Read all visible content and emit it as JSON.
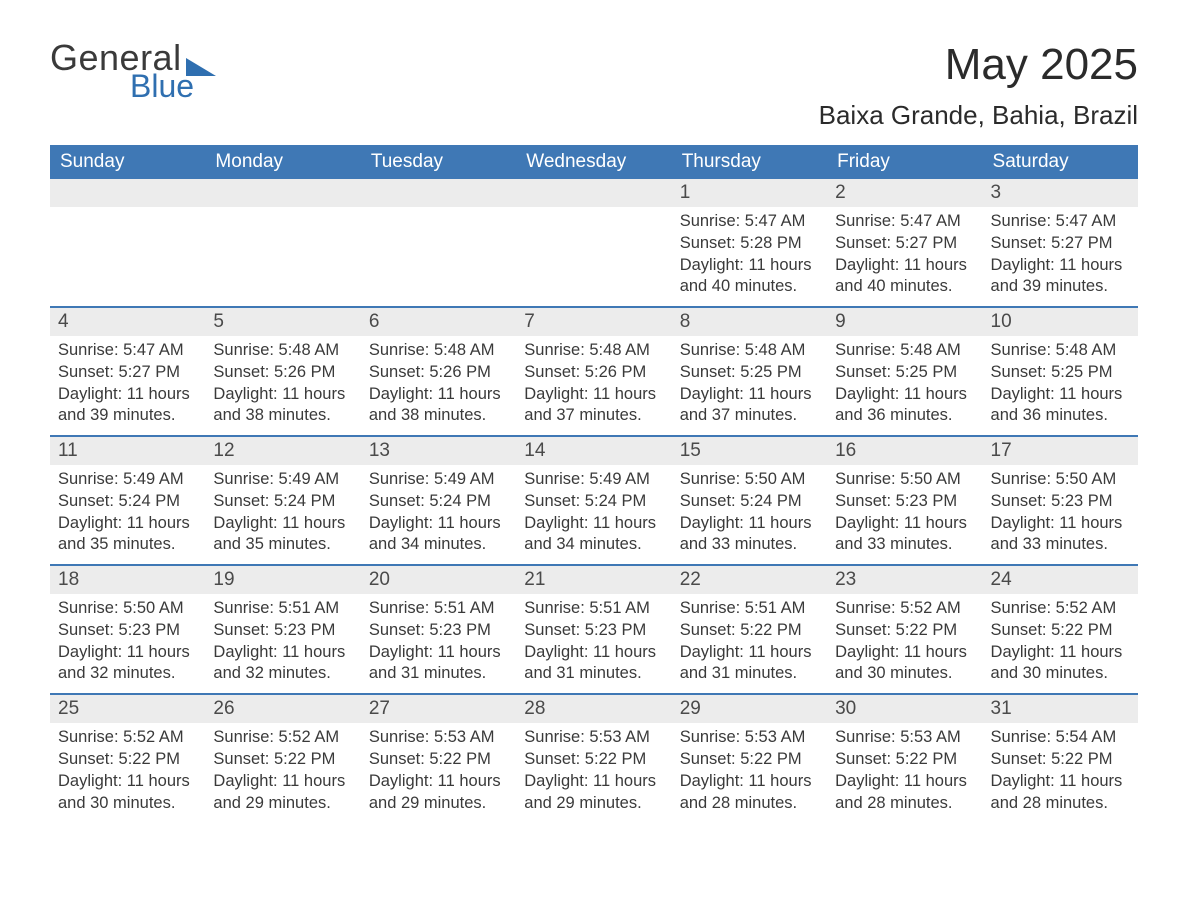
{
  "logo": {
    "textA": "General",
    "textB": "Blue",
    "triangle_color": "#2f6fb0",
    "textA_color": "#3a3a3a",
    "textB_color": "#2f6fb0"
  },
  "header": {
    "month_title": "May 2025",
    "location": "Baixa Grande, Bahia, Brazil"
  },
  "colors": {
    "header_bg": "#3f78b5",
    "header_text": "#ffffff",
    "daynum_bg": "#ececec",
    "week_border": "#3f78b5",
    "body_text": "#3a3a3a",
    "page_bg": "#ffffff"
  },
  "typography": {
    "month_title_fontsize": 44,
    "location_fontsize": 26,
    "dayhead_fontsize": 19,
    "daynum_fontsize": 19,
    "body_fontsize": 16.5
  },
  "calendar": {
    "type": "table",
    "day_headers": [
      "Sunday",
      "Monday",
      "Tuesday",
      "Wednesday",
      "Thursday",
      "Friday",
      "Saturday"
    ],
    "weeks": [
      [
        {
          "blank": true
        },
        {
          "blank": true
        },
        {
          "blank": true
        },
        {
          "blank": true
        },
        {
          "day": "1",
          "sunrise": "Sunrise: 5:47 AM",
          "sunset": "Sunset: 5:28 PM",
          "dl1": "Daylight: 11 hours",
          "dl2": "and 40 minutes."
        },
        {
          "day": "2",
          "sunrise": "Sunrise: 5:47 AM",
          "sunset": "Sunset: 5:27 PM",
          "dl1": "Daylight: 11 hours",
          "dl2": "and 40 minutes."
        },
        {
          "day": "3",
          "sunrise": "Sunrise: 5:47 AM",
          "sunset": "Sunset: 5:27 PM",
          "dl1": "Daylight: 11 hours",
          "dl2": "and 39 minutes."
        }
      ],
      [
        {
          "day": "4",
          "sunrise": "Sunrise: 5:47 AM",
          "sunset": "Sunset: 5:27 PM",
          "dl1": "Daylight: 11 hours",
          "dl2": "and 39 minutes."
        },
        {
          "day": "5",
          "sunrise": "Sunrise: 5:48 AM",
          "sunset": "Sunset: 5:26 PM",
          "dl1": "Daylight: 11 hours",
          "dl2": "and 38 minutes."
        },
        {
          "day": "6",
          "sunrise": "Sunrise: 5:48 AM",
          "sunset": "Sunset: 5:26 PM",
          "dl1": "Daylight: 11 hours",
          "dl2": "and 38 minutes."
        },
        {
          "day": "7",
          "sunrise": "Sunrise: 5:48 AM",
          "sunset": "Sunset: 5:26 PM",
          "dl1": "Daylight: 11 hours",
          "dl2": "and 37 minutes."
        },
        {
          "day": "8",
          "sunrise": "Sunrise: 5:48 AM",
          "sunset": "Sunset: 5:25 PM",
          "dl1": "Daylight: 11 hours",
          "dl2": "and 37 minutes."
        },
        {
          "day": "9",
          "sunrise": "Sunrise: 5:48 AM",
          "sunset": "Sunset: 5:25 PM",
          "dl1": "Daylight: 11 hours",
          "dl2": "and 36 minutes."
        },
        {
          "day": "10",
          "sunrise": "Sunrise: 5:48 AM",
          "sunset": "Sunset: 5:25 PM",
          "dl1": "Daylight: 11 hours",
          "dl2": "and 36 minutes."
        }
      ],
      [
        {
          "day": "11",
          "sunrise": "Sunrise: 5:49 AM",
          "sunset": "Sunset: 5:24 PM",
          "dl1": "Daylight: 11 hours",
          "dl2": "and 35 minutes."
        },
        {
          "day": "12",
          "sunrise": "Sunrise: 5:49 AM",
          "sunset": "Sunset: 5:24 PM",
          "dl1": "Daylight: 11 hours",
          "dl2": "and 35 minutes."
        },
        {
          "day": "13",
          "sunrise": "Sunrise: 5:49 AM",
          "sunset": "Sunset: 5:24 PM",
          "dl1": "Daylight: 11 hours",
          "dl2": "and 34 minutes."
        },
        {
          "day": "14",
          "sunrise": "Sunrise: 5:49 AM",
          "sunset": "Sunset: 5:24 PM",
          "dl1": "Daylight: 11 hours",
          "dl2": "and 34 minutes."
        },
        {
          "day": "15",
          "sunrise": "Sunrise: 5:50 AM",
          "sunset": "Sunset: 5:24 PM",
          "dl1": "Daylight: 11 hours",
          "dl2": "and 33 minutes."
        },
        {
          "day": "16",
          "sunrise": "Sunrise: 5:50 AM",
          "sunset": "Sunset: 5:23 PM",
          "dl1": "Daylight: 11 hours",
          "dl2": "and 33 minutes."
        },
        {
          "day": "17",
          "sunrise": "Sunrise: 5:50 AM",
          "sunset": "Sunset: 5:23 PM",
          "dl1": "Daylight: 11 hours",
          "dl2": "and 33 minutes."
        }
      ],
      [
        {
          "day": "18",
          "sunrise": "Sunrise: 5:50 AM",
          "sunset": "Sunset: 5:23 PM",
          "dl1": "Daylight: 11 hours",
          "dl2": "and 32 minutes."
        },
        {
          "day": "19",
          "sunrise": "Sunrise: 5:51 AM",
          "sunset": "Sunset: 5:23 PM",
          "dl1": "Daylight: 11 hours",
          "dl2": "and 32 minutes."
        },
        {
          "day": "20",
          "sunrise": "Sunrise: 5:51 AM",
          "sunset": "Sunset: 5:23 PM",
          "dl1": "Daylight: 11 hours",
          "dl2": "and 31 minutes."
        },
        {
          "day": "21",
          "sunrise": "Sunrise: 5:51 AM",
          "sunset": "Sunset: 5:23 PM",
          "dl1": "Daylight: 11 hours",
          "dl2": "and 31 minutes."
        },
        {
          "day": "22",
          "sunrise": "Sunrise: 5:51 AM",
          "sunset": "Sunset: 5:22 PM",
          "dl1": "Daylight: 11 hours",
          "dl2": "and 31 minutes."
        },
        {
          "day": "23",
          "sunrise": "Sunrise: 5:52 AM",
          "sunset": "Sunset: 5:22 PM",
          "dl1": "Daylight: 11 hours",
          "dl2": "and 30 minutes."
        },
        {
          "day": "24",
          "sunrise": "Sunrise: 5:52 AM",
          "sunset": "Sunset: 5:22 PM",
          "dl1": "Daylight: 11 hours",
          "dl2": "and 30 minutes."
        }
      ],
      [
        {
          "day": "25",
          "sunrise": "Sunrise: 5:52 AM",
          "sunset": "Sunset: 5:22 PM",
          "dl1": "Daylight: 11 hours",
          "dl2": "and 30 minutes."
        },
        {
          "day": "26",
          "sunrise": "Sunrise: 5:52 AM",
          "sunset": "Sunset: 5:22 PM",
          "dl1": "Daylight: 11 hours",
          "dl2": "and 29 minutes."
        },
        {
          "day": "27",
          "sunrise": "Sunrise: 5:53 AM",
          "sunset": "Sunset: 5:22 PM",
          "dl1": "Daylight: 11 hours",
          "dl2": "and 29 minutes."
        },
        {
          "day": "28",
          "sunrise": "Sunrise: 5:53 AM",
          "sunset": "Sunset: 5:22 PM",
          "dl1": "Daylight: 11 hours",
          "dl2": "and 29 minutes."
        },
        {
          "day": "29",
          "sunrise": "Sunrise: 5:53 AM",
          "sunset": "Sunset: 5:22 PM",
          "dl1": "Daylight: 11 hours",
          "dl2": "and 28 minutes."
        },
        {
          "day": "30",
          "sunrise": "Sunrise: 5:53 AM",
          "sunset": "Sunset: 5:22 PM",
          "dl1": "Daylight: 11 hours",
          "dl2": "and 28 minutes."
        },
        {
          "day": "31",
          "sunrise": "Sunrise: 5:54 AM",
          "sunset": "Sunset: 5:22 PM",
          "dl1": "Daylight: 11 hours",
          "dl2": "and 28 minutes."
        }
      ]
    ]
  }
}
